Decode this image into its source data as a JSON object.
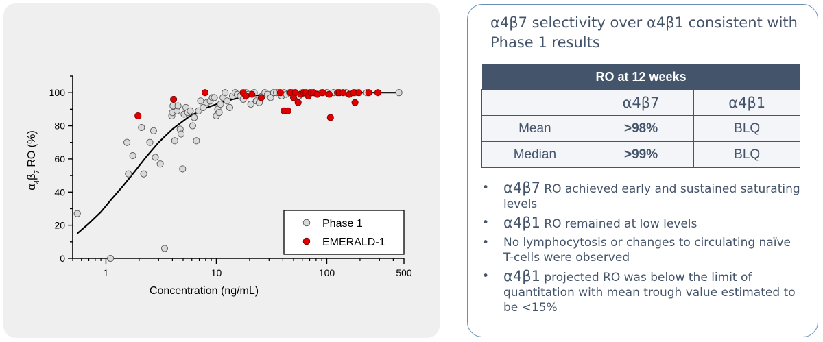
{
  "chart_data": {
    "type": "scatter",
    "xscale": "log",
    "xlim": [
      0.5,
      500
    ],
    "ylim": [
      0,
      110
    ],
    "xlabel": "Concentration (ng/mL)",
    "ylabel_html": "α<tspan baseline-shift='sub' font-size='10'>4</tspan>β<tspan baseline-shift='sub' font-size='10'>7</tspan> RO (%)",
    "ylabel": "α4β7 RO (%)",
    "xticks": [
      1,
      10,
      100,
      500
    ],
    "xtick_labels": [
      "1",
      "10",
      "100",
      "500"
    ],
    "yticks": [
      0,
      20,
      40,
      60,
      80,
      100
    ],
    "ytick_labels": [
      "0",
      "20",
      "40",
      "60",
      "80",
      "100"
    ],
    "legend": [
      "Phase 1",
      "EMERALD-1"
    ],
    "series": [
      {
        "name": "Phase 1",
        "color": "#d9d9d9",
        "points": [
          [
            0.55,
            27
          ],
          [
            1.1,
            0
          ],
          [
            1.55,
            70
          ],
          [
            1.6,
            51
          ],
          [
            1.75,
            62
          ],
          [
            2.1,
            79
          ],
          [
            2.2,
            51
          ],
          [
            2.5,
            70
          ],
          [
            2.7,
            77
          ],
          [
            2.8,
            61
          ],
          [
            3.1,
            57
          ],
          [
            3.4,
            6
          ],
          [
            3.95,
            86
          ],
          [
            4.0,
            88
          ],
          [
            4.05,
            92
          ],
          [
            4.2,
            71
          ],
          [
            4.4,
            89
          ],
          [
            4.5,
            92
          ],
          [
            4.7,
            78
          ],
          [
            4.8,
            75
          ],
          [
            4.95,
            54
          ],
          [
            5.1,
            87
          ],
          [
            5.3,
            91
          ],
          [
            5.5,
            88
          ],
          [
            5.8,
            89
          ],
          [
            6.1,
            80
          ],
          [
            6.3,
            85
          ],
          [
            6.6,
            71
          ],
          [
            6.9,
            89
          ],
          [
            7.2,
            95
          ],
          [
            7.6,
            91
          ],
          [
            8.2,
            94
          ],
          [
            8.8,
            95
          ],
          [
            9.2,
            97
          ],
          [
            9.6,
            97
          ],
          [
            10.0,
            86
          ],
          [
            10.3,
            90
          ],
          [
            10.6,
            88
          ],
          [
            10.9,
            93
          ],
          [
            11.5,
            97
          ],
          [
            12.0,
            100
          ],
          [
            12.5,
            95
          ],
          [
            13.2,
            91
          ],
          [
            14.0,
            98
          ],
          [
            14.8,
            100
          ],
          [
            15.5,
            99
          ],
          [
            16.5,
            98
          ],
          [
            17.5,
            96
          ],
          [
            18.5,
            100
          ],
          [
            19.5,
            99
          ],
          [
            20.5,
            93
          ],
          [
            22,
            100
          ],
          [
            23,
            95
          ],
          [
            24.5,
            94
          ],
          [
            26,
            98
          ],
          [
            27.5,
            100
          ],
          [
            29,
            99
          ],
          [
            31,
            97
          ],
          [
            33,
            100
          ],
          [
            35,
            100
          ],
          [
            37,
            100
          ],
          [
            39,
            98
          ],
          [
            41,
            100
          ],
          [
            43,
            99
          ],
          [
            46,
            100
          ],
          [
            49,
            100
          ],
          [
            52,
            100
          ],
          [
            56,
            98
          ],
          [
            60,
            100
          ],
          [
            65,
            99
          ],
          [
            70,
            100
          ],
          [
            75,
            100
          ],
          [
            82,
            99
          ],
          [
            90,
            100
          ],
          [
            100,
            100
          ],
          [
            115,
            100
          ],
          [
            130,
            100
          ],
          [
            150,
            100
          ],
          [
            180,
            100
          ],
          [
            230,
            100
          ],
          [
            450,
            100
          ]
        ]
      },
      {
        "name": "EMERALD-1",
        "color": "#e00000",
        "points": [
          [
            1.95,
            86
          ],
          [
            4.1,
            96
          ],
          [
            7.9,
            100
          ],
          [
            17.5,
            100
          ],
          [
            18.5,
            98
          ],
          [
            21,
            99
          ],
          [
            25.5,
            97
          ],
          [
            38,
            100
          ],
          [
            41,
            89
          ],
          [
            44.5,
            89
          ],
          [
            47,
            100
          ],
          [
            50,
            97
          ],
          [
            52,
            100
          ],
          [
            55,
            94
          ],
          [
            58,
            99
          ],
          [
            62,
            100
          ],
          [
            65,
            100
          ],
          [
            68,
            98
          ],
          [
            72,
            100
          ],
          [
            76,
            100
          ],
          [
            82,
            99
          ],
          [
            92,
            100
          ],
          [
            105,
            99
          ],
          [
            108,
            85
          ],
          [
            125,
            100
          ],
          [
            130,
            100
          ],
          [
            140,
            100
          ],
          [
            160,
            99
          ],
          [
            175,
            100
          ],
          [
            180,
            94
          ],
          [
            195,
            100
          ],
          [
            240,
            100
          ],
          [
            290,
            100
          ]
        ]
      }
    ],
    "fit_curve": {
      "name": "Fit",
      "points": [
        [
          0.55,
          15
        ],
        [
          0.7,
          21
        ],
        [
          0.9,
          28
        ],
        [
          1.1,
          35
        ],
        [
          1.4,
          43
        ],
        [
          1.8,
          52
        ],
        [
          2.3,
          61
        ],
        [
          3.0,
          70
        ],
        [
          4.0,
          78
        ],
        [
          5.5,
          85
        ],
        [
          7.5,
          90
        ],
        [
          10,
          93
        ],
        [
          14,
          96
        ],
        [
          20,
          98
        ],
        [
          30,
          99
        ],
        [
          50,
          99.6
        ],
        [
          100,
          99.9
        ],
        [
          200,
          100
        ],
        [
          450,
          100
        ]
      ]
    }
  },
  "headline": "α4β7 selectivity over α4β1 consistent with Phase 1 results",
  "table": {
    "title": "RO at 12 weeks",
    "col1": "α4β7",
    "col2": "α4β1",
    "rows": [
      {
        "label": "Mean",
        "a4b7": ">98%",
        "a4b1": "BLQ"
      },
      {
        "label": "Median",
        "a4b7": ">99%",
        "a4b1": "BLQ"
      }
    ]
  },
  "bullets": [
    {
      "sym": "α4β7",
      "text": " RO achieved early and sustained saturating levels"
    },
    {
      "sym": "α4β1",
      "text": " RO remained at low levels"
    },
    {
      "sym": "",
      "text": "No lymphocytosis or changes to circulating naïve T-cells were observed"
    },
    {
      "sym": "α4β1",
      "text": " projected RO was below the limit of quantitation with mean trough value estimated to be <15%"
    }
  ]
}
